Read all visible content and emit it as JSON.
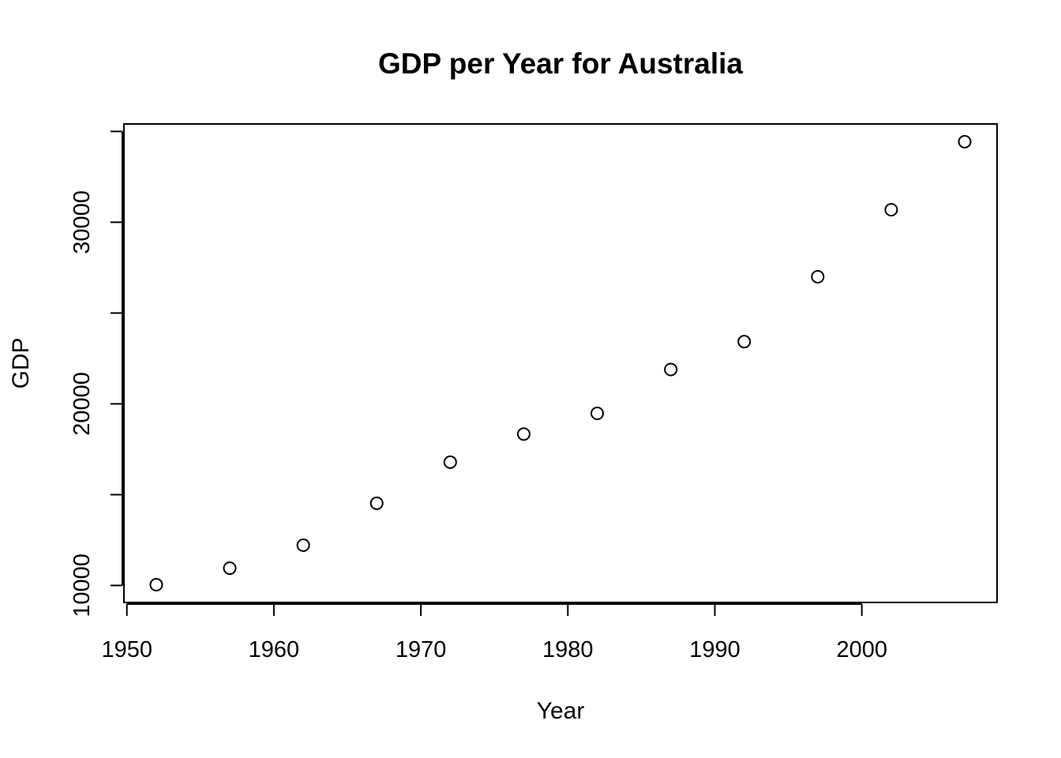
{
  "chart_data": {
    "type": "scatter",
    "title": "GDP per Year for Australia",
    "xlabel": "Year",
    "ylabel": "GDP",
    "x": [
      1952,
      1957,
      1962,
      1967,
      1972,
      1977,
      1982,
      1987,
      1992,
      1997,
      2002,
      2007
    ],
    "y": [
      10040,
      10950,
      12217,
      14526,
      16789,
      18334,
      19477,
      21889,
      23425,
      26998,
      30688,
      34435
    ],
    "xticks": [
      1950,
      1960,
      1970,
      1980,
      1990,
      2000
    ],
    "yticks": [
      10000,
      15000,
      20000,
      25000,
      30000,
      35000
    ],
    "ytick_labels": [
      "10000",
      "",
      "20000",
      "",
      "30000",
      ""
    ],
    "xlim": [
      1949.8,
      2009.2
    ],
    "ylim": [
      9064,
      35411
    ],
    "grid": false,
    "marker": "open-circle",
    "color": "#000000"
  }
}
